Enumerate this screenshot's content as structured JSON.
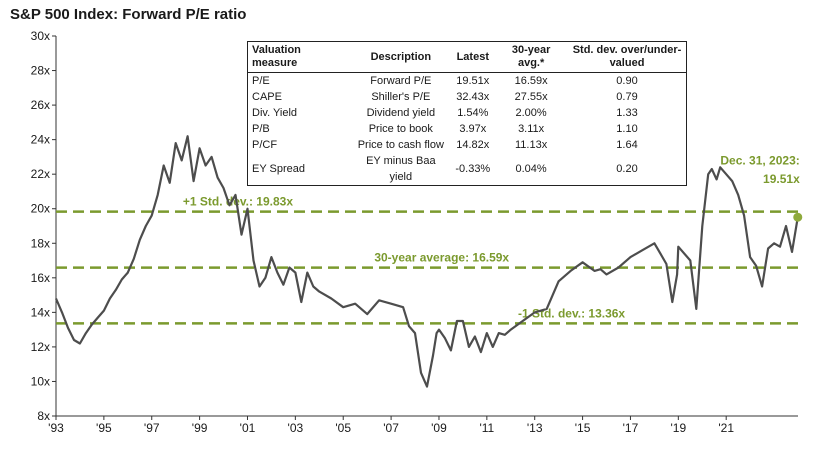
{
  "chart_data": {
    "type": "line",
    "title": "S&P 500 Index: Forward P/E ratio",
    "ylim": [
      8,
      30
    ],
    "y_ticks": [
      "8x",
      "10x",
      "12x",
      "14x",
      "16x",
      "18x",
      "20x",
      "22x",
      "24x",
      "26x",
      "28x",
      "30x"
    ],
    "y_tick_values": [
      8,
      10,
      12,
      14,
      16,
      18,
      20,
      22,
      24,
      26,
      28,
      30
    ],
    "x_ticks": [
      "'93",
      "'95",
      "'97",
      "'99",
      "'01",
      "'03",
      "'05",
      "'07",
      "'09",
      "'11",
      "'13",
      "'15",
      "'17",
      "'19",
      "'21"
    ],
    "x_tick_values": [
      1993,
      1995,
      1997,
      1999,
      2001,
      2003,
      2005,
      2007,
      2009,
      2011,
      2013,
      2015,
      2017,
      2019,
      2021
    ],
    "xlim": [
      1993,
      2024.0
    ],
    "series": [
      {
        "color": "#4d4d4d",
        "x": [
          1993.0,
          1993.25,
          1993.5,
          1993.75,
          1994.0,
          1994.25,
          1994.5,
          1994.75,
          1995.0,
          1995.25,
          1995.5,
          1995.75,
          1996.0,
          1996.25,
          1996.5,
          1996.75,
          1997.0,
          1997.25,
          1997.5,
          1997.75,
          1998.0,
          1998.25,
          1998.5,
          1998.75,
          1999.0,
          1999.25,
          1999.5,
          1999.75,
          2000.0,
          2000.25,
          2000.5,
          2000.75,
          2001.0,
          2001.25,
          2001.5,
          2001.75,
          2002.0,
          2002.25,
          2002.5,
          2002.75,
          2003.0,
          2003.25,
          2003.5,
          2003.75,
          2004.0,
          2004.5,
          2005.0,
          2005.5,
          2006.0,
          2006.5,
          2007.0,
          2007.5,
          2007.75,
          2008.0,
          2008.25,
          2008.5,
          2008.75,
          2008.9,
          2009.0,
          2009.25,
          2009.5,
          2009.75,
          2010.0,
          2010.25,
          2010.5,
          2010.75,
          2011.0,
          2011.25,
          2011.5,
          2011.75,
          2012.0,
          2012.5,
          2013.0,
          2013.5,
          2014.0,
          2014.5,
          2015.0,
          2015.5,
          2015.75,
          2016.0,
          2016.5,
          2017.0,
          2017.5,
          2018.0,
          2018.25,
          2018.5,
          2018.75,
          2018.95,
          2019.0,
          2019.5,
          2019.75,
          2020.0,
          2020.25,
          2020.4,
          2020.6,
          2020.75,
          2021.0,
          2021.25,
          2021.5,
          2021.75,
          2022.0,
          2022.25,
          2022.5,
          2022.75,
          2023.0,
          2023.25,
          2023.5,
          2023.75,
          2023.99
        ],
        "values": [
          14.8,
          14.0,
          13.1,
          12.4,
          12.2,
          12.8,
          13.3,
          13.7,
          14.1,
          14.8,
          15.3,
          15.9,
          16.3,
          17.1,
          18.2,
          19.0,
          19.6,
          20.8,
          22.5,
          21.5,
          23.8,
          22.8,
          24.2,
          21.6,
          23.5,
          22.5,
          23.0,
          21.8,
          21.2,
          20.2,
          20.8,
          18.5,
          20.0,
          17.0,
          15.5,
          16.0,
          17.2,
          16.3,
          15.6,
          16.6,
          16.3,
          14.6,
          16.3,
          15.5,
          15.2,
          14.8,
          14.3,
          14.5,
          13.9,
          14.7,
          14.5,
          14.3,
          13.2,
          12.8,
          10.5,
          9.7,
          11.5,
          12.8,
          13.0,
          12.5,
          11.8,
          13.5,
          13.5,
          12.0,
          12.6,
          11.7,
          12.8,
          12.0,
          12.8,
          12.7,
          13.0,
          13.5,
          14.0,
          14.2,
          15.8,
          16.4,
          16.9,
          16.4,
          16.5,
          16.2,
          16.6,
          17.2,
          17.6,
          18.0,
          17.4,
          16.8,
          14.6,
          16.2,
          17.8,
          17.0,
          14.2,
          19.0,
          22.0,
          22.3,
          21.7,
          22.4,
          22.0,
          21.6,
          20.8,
          19.6,
          17.2,
          16.7,
          15.5,
          17.7,
          18.0,
          17.8,
          19.0,
          17.5,
          19.51
        ]
      }
    ],
    "reference_lines": [
      {
        "value": 19.83,
        "label": "+1 Std. dev.: 19.83x"
      },
      {
        "value": 16.59,
        "label": "30-year average: 16.59x"
      },
      {
        "value": 13.36,
        "label": "-1 Std. dev.: 13.36x"
      }
    ],
    "latest_annotation": {
      "line1": "Dec. 31, 2023:",
      "line2": "19.51x",
      "value": 19.51
    },
    "colors": {
      "line": "#4d4d4d",
      "reference": "#7b9a2e",
      "latest_dot": "#8faa3c"
    },
    "table": {
      "headers": [
        "Valuation measure",
        "Description",
        "Latest",
        "30-year avg.*",
        "Std. dev. over/under-valued"
      ],
      "rows": [
        [
          "P/E",
          "Forward P/E",
          "19.51x",
          "16.59x",
          "0.90"
        ],
        [
          "CAPE",
          "Shiller's P/E",
          "32.43x",
          "27.55x",
          "0.79"
        ],
        [
          "Div. Yield",
          "Dividend yield",
          "1.54%",
          "2.00%",
          "1.33"
        ],
        [
          "P/B",
          "Price to book",
          "3.97x",
          "3.11x",
          "1.10"
        ],
        [
          "P/CF",
          "Price to cash flow",
          "14.82x",
          "11.13x",
          "1.64"
        ],
        [
          "EY Spread",
          "EY minus Baa yield",
          "-0.33%",
          "0.04%",
          "0.20"
        ]
      ]
    }
  }
}
